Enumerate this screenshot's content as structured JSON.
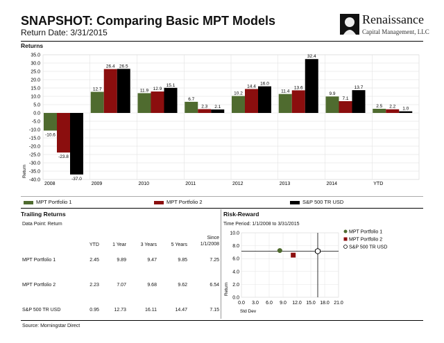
{
  "header": {
    "title": "SNAPSHOT: Comparing Basic MPT Models",
    "subtitle": "Return Date: 3/31/2015",
    "logo_name": "Renaissance",
    "logo_sub": "Capital Management, LLC"
  },
  "colors": {
    "mpt1": "#4f6b2f",
    "mpt2": "#8b0e0e",
    "sp500": "#000000"
  },
  "returns_section": {
    "title": "Returns"
  },
  "legend": [
    "MPT Portfolio 1",
    "MPT Portfolio 2",
    "S&P 500 TR USD"
  ],
  "trailing": {
    "title": "Trailing Returns",
    "data_point": "Data Point: Return",
    "columns": [
      "",
      "YTD",
      "1 Year",
      "3 Years",
      "5 Years",
      "Since 1/1/2008"
    ],
    "rows": [
      [
        "MPT Portfolio 1",
        "2.45",
        "9.89",
        "9.47",
        "9.85",
        "7.25"
      ],
      [
        "MPT Portfolio 2",
        "2.23",
        "7.07",
        "9.68",
        "9.62",
        "6.54"
      ],
      [
        "S&P 500 TR USD",
        "0.95",
        "12.73",
        "16.11",
        "14.47",
        "7.15"
      ]
    ]
  },
  "risk": {
    "title": "Risk-Reward",
    "period": "Time Period: 1/1/2008 to 3/31/2015"
  },
  "source": "Source: Morningstar Direct",
  "chart_data": [
    {
      "type": "bar",
      "categories": [
        "2008",
        "2009",
        "2010",
        "2011",
        "2012",
        "2013",
        "2014",
        "YTD"
      ],
      "series": [
        {
          "name": "MPT Portfolio 1",
          "values": [
            -10.6,
            12.7,
            11.9,
            6.7,
            10.2,
            11.4,
            9.9,
            2.5
          ]
        },
        {
          "name": "MPT Portfolio 2",
          "values": [
            -23.8,
            26.4,
            12.9,
            2.3,
            14.4,
            13.6,
            7.1,
            2.2
          ]
        },
        {
          "name": "S&P 500 TR USD",
          "values": [
            -37.0,
            26.5,
            15.1,
            2.1,
            16.0,
            32.4,
            13.7,
            1.0
          ]
        }
      ],
      "ylabel": "Return",
      "ylim": [
        -40,
        35
      ],
      "yticks": [
        35.0,
        30.0,
        25.0,
        20.0,
        15.0,
        10.0,
        5.0,
        0.0,
        -5.0,
        -10.0,
        -15.0,
        -20.0,
        -25.0,
        -30.0,
        -35.0,
        -40.0
      ],
      "grid": true,
      "legend": "bottom"
    },
    {
      "type": "scatter",
      "series": [
        {
          "name": "MPT Portfolio 1",
          "x": 8.3,
          "y": 7.25,
          "marker": "circle"
        },
        {
          "name": "MPT Portfolio 2",
          "x": 11.2,
          "y": 6.54,
          "marker": "square"
        },
        {
          "name": "S&P 500 TR USD",
          "x": 16.5,
          "y": 7.15,
          "marker": "hexagon"
        }
      ],
      "xlabel": "Std Dev",
      "ylabel": "Return",
      "xlim": [
        0,
        21
      ],
      "ylim": [
        0,
        10
      ],
      "xticks": [
        "0.0",
        "3.0",
        "6.0",
        "9.0",
        "12.0",
        "15.0",
        "18.0",
        "21.0"
      ],
      "yticks": [
        "10.0",
        "8.0",
        "6.0",
        "4.0",
        "2.0",
        "0.0"
      ],
      "legend": "top-right"
    }
  ]
}
